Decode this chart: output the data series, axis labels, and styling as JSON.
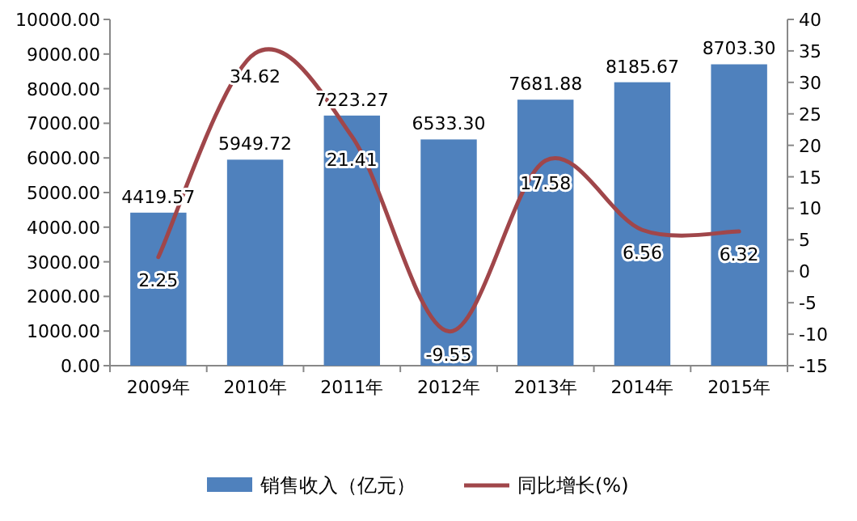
{
  "chart_data": {
    "type": "bar",
    "categories": [
      "2009年",
      "2010年",
      "2011年",
      "2012年",
      "2013年",
      "2014年",
      "2015年"
    ],
    "series": [
      {
        "name": "销售收入（亿元）",
        "color": "#4f81bd",
        "values": [
          4419.57,
          5949.72,
          7223.27,
          6533.3,
          7681.88,
          8185.67,
          8703.3
        ],
        "value_labels": [
          "4419.57",
          "5949.72",
          "7223.27",
          "6533.30",
          "7681.88",
          "8185.67",
          "8703.30"
        ]
      },
      {
        "name": "同比增长(%)",
        "type": "line",
        "axis": "y2",
        "color": "#a0464a",
        "values": [
          2.25,
          34.62,
          21.41,
          -9.55,
          17.58,
          6.56,
          6.32
        ]
      }
    ],
    "ylim": [
      0,
      10000
    ],
    "yticks": [
      {
        "value": 0,
        "label": "0.00"
      },
      {
        "value": 1000,
        "label": "1000.00"
      },
      {
        "value": 2000,
        "label": "2000.00"
      },
      {
        "value": 3000,
        "label": "3000.00"
      },
      {
        "value": 4000,
        "label": "4000.00"
      },
      {
        "value": 5000,
        "label": "5000.00"
      },
      {
        "value": 6000,
        "label": "6000.00"
      },
      {
        "value": 7000,
        "label": "7000.00"
      },
      {
        "value": 8000,
        "label": "8000.00"
      },
      {
        "value": 9000,
        "label": "9000.00"
      },
      {
        "value": 10000,
        "label": "10000.00"
      }
    ],
    "y2lim": [
      -15,
      40
    ],
    "y2ticks": [
      -15,
      -10,
      -5,
      0,
      5,
      10,
      15,
      20,
      25,
      30,
      35,
      40
    ],
    "data_labels": true,
    "legend": "bottom"
  }
}
